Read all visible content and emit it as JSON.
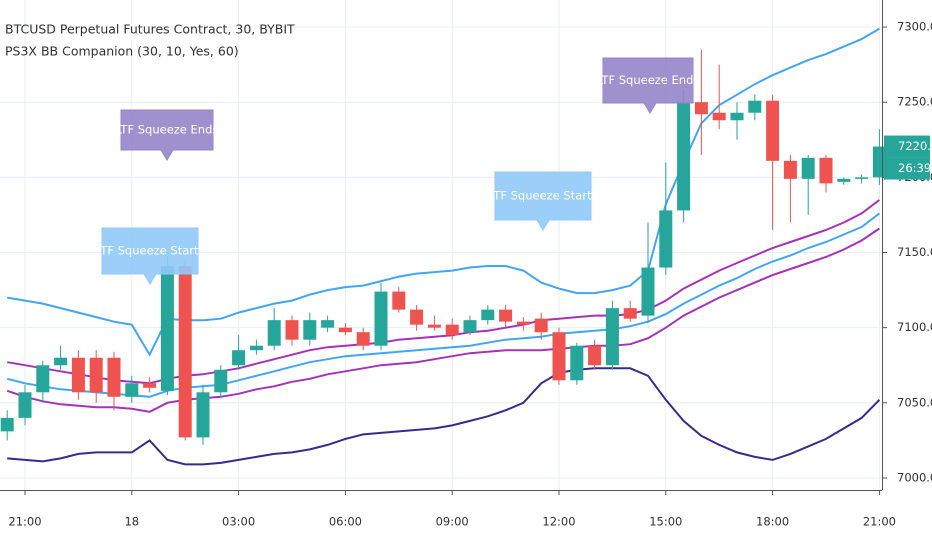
{
  "chart_data": {
    "type": "candlestick",
    "title": "BTCUSD Perpetual Futures Contract, 30, BYBIT",
    "subtitle": "PS3X BB Companion (30, 10, Yes, 60)",
    "categories": [
      null,
      "21:00",
      null,
      null,
      null,
      null,
      null,
      "18",
      null,
      null,
      null,
      null,
      null,
      "03:00",
      null,
      null,
      null,
      null,
      null,
      "06:00",
      null,
      null,
      null,
      null,
      null,
      "09:00",
      null,
      null,
      null,
      null,
      null,
      "12:00",
      null,
      null,
      null,
      null,
      null,
      "15:00",
      null,
      null,
      null,
      null,
      null,
      "18:00",
      null,
      null,
      null,
      null,
      null,
      "21:00"
    ],
    "open": [
      7031,
      7040,
      7057,
      7075,
      7080,
      7080,
      7080,
      7054,
      7063,
      7058,
      7141,
      7027,
      7057,
      7075,
      7085,
      7088,
      7105,
      7092,
      7100,
      7100,
      7097,
      7088,
      7124,
      7112,
      7102,
      7102,
      7097,
      7105,
      7112,
      7104,
      7106,
      7097,
      7065,
      7088,
      7075,
      7113,
      7108,
      7140,
      7178,
      7250,
      7243,
      7238,
      7243,
      7251,
      7211,
      7199,
      7213,
      7197,
      7199,
      7200
    ],
    "high": [
      7045,
      7062,
      7078,
      7088,
      7085,
      7085,
      7084,
      7068,
      7067,
      7148,
      7145,
      7062,
      7075,
      7095,
      7092,
      7113,
      7108,
      7110,
      7108,
      7103,
      7100,
      7130,
      7127,
      7115,
      7108,
      7106,
      7108,
      7115,
      7115,
      7107,
      7110,
      7100,
      7090,
      7092,
      7118,
      7118,
      7170,
      7210,
      7258,
      7285,
      7275,
      7250,
      7255,
      7255,
      7215,
      7215,
      7215,
      7200,
      7202,
      7232
    ],
    "low": [
      7025,
      7035,
      7050,
      7072,
      7052,
      7050,
      7045,
      7050,
      7057,
      7055,
      7025,
      7022,
      7053,
      7072,
      7082,
      7085,
      7088,
      7088,
      7097,
      7095,
      7085,
      7085,
      7110,
      7098,
      7098,
      7092,
      7095,
      7102,
      7100,
      7098,
      7092,
      7062,
      7062,
      7072,
      7072,
      7104,
      7103,
      7135,
      7170,
      7215,
      7232,
      7225,
      7238,
      7165,
      7170,
      7175,
      7190,
      7195,
      7196,
      7195
    ],
    "close": [
      7040,
      7057,
      7075,
      7080,
      7057,
      7057,
      7054,
      7063,
      7060,
      7141,
      7027,
      7057,
      7072,
      7085,
      7088,
      7105,
      7092,
      7105,
      7105,
      7097,
      7088,
      7124,
      7112,
      7102,
      7100,
      7095,
      7105,
      7112,
      7104,
      7102,
      7097,
      7065,
      7088,
      7075,
      7113,
      7106,
      7140,
      7178,
      7250,
      7242,
      7238,
      7243,
      7251,
      7211,
      7199,
      7213,
      7196,
      7199,
      7200,
      7220.5
    ],
    "up_color": "#26a69a",
    "down_color": "#ef5350",
    "lines": [
      {
        "color": "#42a5f5",
        "values": [
          7120,
          7118,
          7116,
          7113,
          7110,
          7107,
          7104,
          7102,
          7082,
          7106,
          7105,
          7105,
          7106,
          7110,
          7113,
          7116,
          7118,
          7122,
          7125,
          7127,
          7128,
          7131,
          7134,
          7136,
          7137,
          7138,
          7140,
          7141,
          7141,
          7138,
          7130,
          7126,
          7123,
          7123,
          7125,
          7128,
          7138,
          7182,
          7210,
          7236,
          7248,
          7255,
          7262,
          7268,
          7273,
          7278,
          7282,
          7287,
          7292,
          7299
        ]
      },
      {
        "color": "#3a2a8f",
        "values": [
          7013,
          7012,
          7011,
          7013,
          7016,
          7017,
          7017,
          7017,
          7025,
          7012,
          7009,
          7009,
          7010,
          7012,
          7014,
          7016,
          7017,
          7019,
          7022,
          7026,
          7029,
          7030,
          7031,
          7032,
          7033,
          7035,
          7038,
          7041,
          7045,
          7050,
          7063,
          7070,
          7072,
          7073,
          7073,
          7073,
          7068,
          7052,
          7038,
          7028,
          7022,
          7017,
          7014,
          7012,
          7016,
          7021,
          7026,
          7033,
          7040,
          7052
        ]
      },
      {
        "color": "#a632b8",
        "values": [
          7077,
          7075,
          7073,
          7071,
          7069,
          7067,
          7065,
          7064,
          7063,
          7066,
          7068,
          7069,
          7071,
          7073,
          7076,
          7079,
          7082,
          7085,
          7087,
          7088,
          7089,
          7090,
          7092,
          7093,
          7094,
          7095,
          7097,
          7098,
          7100,
          7102,
          7105,
          7106,
          7107,
          7108,
          7108,
          7109,
          7112,
          7118,
          7126,
          7132,
          7138,
          7143,
          7148,
          7153,
          7157,
          7161,
          7165,
          7170,
          7176,
          7185
        ]
      },
      {
        "color": "#42a5f5",
        "values": [
          7066,
          7063,
          7061,
          7059,
          7058,
          7057,
          7056,
          7055,
          7054,
          7058,
          7060,
          7061,
          7062,
          7065,
          7068,
          7071,
          7074,
          7077,
          7079,
          7081,
          7082,
          7083,
          7084,
          7085,
          7086,
          7087,
          7088,
          7090,
          7092,
          7093,
          7094,
          7096,
          7097,
          7098,
          7099,
          7101,
          7104,
          7109,
          7116,
          7122,
          7128,
          7133,
          7139,
          7144,
          7148,
          7153,
          7157,
          7162,
          7167,
          7176
        ]
      },
      {
        "color": "#a632b8",
        "values": [
          7058,
          7054,
          7051,
          7049,
          7048,
          7047,
          7047,
          7046,
          7044,
          7050,
          7052,
          7053,
          7054,
          7056,
          7059,
          7061,
          7064,
          7066,
          7069,
          7071,
          7073,
          7075,
          7076,
          7077,
          7079,
          7081,
          7083,
          7084,
          7085,
          7085,
          7085,
          7086,
          7087,
          7088,
          7088,
          7089,
          7093,
          7100,
          7108,
          7114,
          7120,
          7125,
          7130,
          7135,
          7139,
          7143,
          7147,
          7152,
          7158,
          7166
        ]
      }
    ],
    "annotations": [
      {
        "text": "LTF Squeeze Ends",
        "color": "#9585c9"
      },
      {
        "text": "LTF Squeeze Starts",
        "color": "#90caf9"
      },
      {
        "text": "LTF Squeeze Starts",
        "color": "#90caf9"
      },
      {
        "text": "LTF Squeeze Ends",
        "color": "#9585c9"
      }
    ],
    "countdown": "26:39",
    "ylim": [
      6992,
      7318
    ],
    "yticks": [
      {
        "value": 7000,
        "label": "7000.0"
      },
      {
        "value": 7050,
        "label": "7050.0"
      },
      {
        "value": 7100,
        "label": "7100.0"
      },
      {
        "value": 7150,
        "label": "7150.0"
      },
      {
        "value": 7200,
        "label": "7200.0"
      },
      {
        "value": 7250,
        "label": "7250.0"
      },
      {
        "value": 7300,
        "label": "7300.0"
      }
    ],
    "grid": true
  }
}
